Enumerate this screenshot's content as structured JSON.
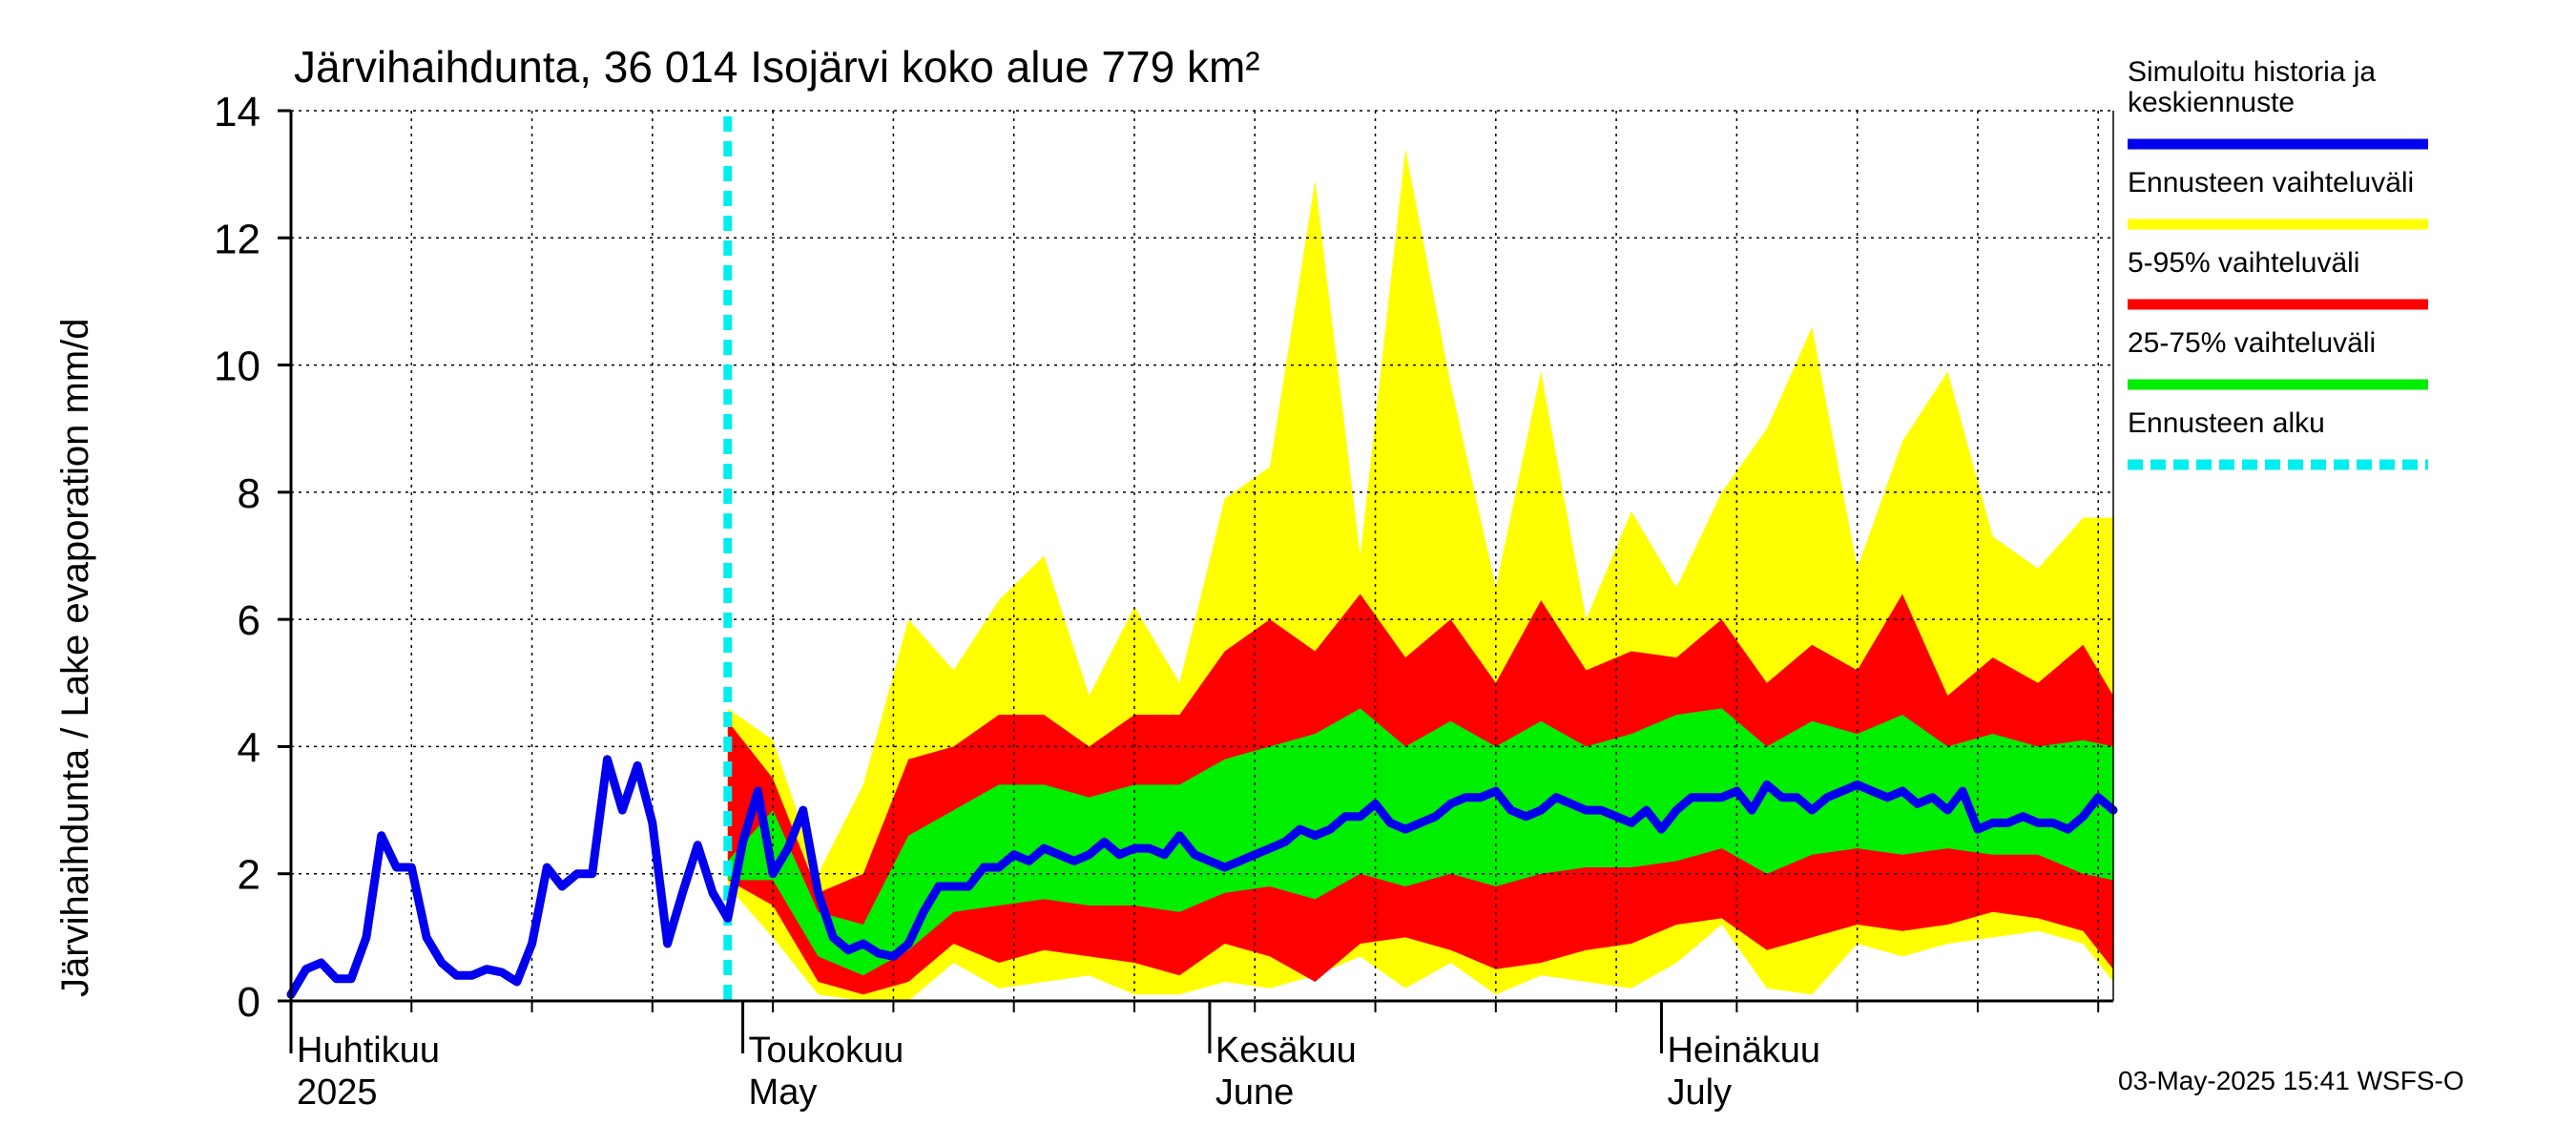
{
  "chart_data": {
    "type": "area",
    "title": "Järvihaihdunta, 36 014 Isojärvi koko alue 779 km²",
    "ylabel": "Järvihaihdunta / Lake evaporation   mm/d",
    "ylim": [
      0,
      14
    ],
    "yticks": [
      0,
      2,
      4,
      6,
      8,
      10,
      12,
      14
    ],
    "x_start": "2025-04-01",
    "x_end": "2025-07-31",
    "grid": true,
    "legend_position": "right",
    "month_labels": [
      {
        "date": "2025-04-01",
        "fi": "Huhtikuu",
        "en": "2025"
      },
      {
        "date": "2025-05-01",
        "fi": "Toukokuu",
        "en": "May"
      },
      {
        "date": "2025-06-01",
        "fi": "Kesäkuu",
        "en": "June"
      },
      {
        "date": "2025-07-01",
        "fi": "Heinäkuu",
        "en": "July"
      }
    ],
    "forecast_start": "2025-04-30",
    "forecast_dates": [
      "2025-04-30",
      "2025-05-03",
      "2025-05-06",
      "2025-05-09",
      "2025-05-12",
      "2025-05-15",
      "2025-05-18",
      "2025-05-21",
      "2025-05-24",
      "2025-05-27",
      "2025-05-30",
      "2025-06-02",
      "2025-06-05",
      "2025-06-08",
      "2025-06-11",
      "2025-06-14",
      "2025-06-17",
      "2025-06-20",
      "2025-06-23",
      "2025-06-26",
      "2025-06-29",
      "2025-07-02",
      "2025-07-05",
      "2025-07-08",
      "2025-07-11",
      "2025-07-14",
      "2025-07-17",
      "2025-07-20",
      "2025-07-23",
      "2025-07-26",
      "2025-07-29",
      "2025-07-31"
    ],
    "band_full": {
      "upper": [
        4.6,
        4.1,
        2.0,
        3.4,
        6.0,
        5.2,
        6.3,
        7.0,
        4.8,
        6.2,
        5.0,
        7.9,
        8.4,
        12.9,
        7.0,
        13.4,
        9.7,
        6.5,
        9.9,
        6.0,
        7.7,
        6.5,
        8.0,
        9.0,
        10.6,
        6.8,
        8.8,
        9.9,
        7.3,
        6.8,
        7.6,
        7.6
      ],
      "lower": [
        1.8,
        1.0,
        0.1,
        0.0,
        0.0,
        0.6,
        0.2,
        0.3,
        0.4,
        0.1,
        0.1,
        0.3,
        0.2,
        0.4,
        0.7,
        0.2,
        0.6,
        0.1,
        0.4,
        0.3,
        0.2,
        0.6,
        1.2,
        0.2,
        0.1,
        0.9,
        0.7,
        0.9,
        1.0,
        1.1,
        0.9,
        0.3
      ]
    },
    "band_5_95": {
      "upper": [
        4.4,
        3.5,
        1.7,
        2.0,
        3.8,
        4.0,
        4.5,
        4.5,
        4.0,
        4.5,
        4.5,
        5.5,
        6.0,
        5.5,
        6.4,
        5.4,
        6.0,
        5.0,
        6.3,
        5.2,
        5.5,
        5.4,
        6.0,
        5.0,
        5.6,
        5.2,
        6.4,
        4.8,
        5.4,
        5.0,
        5.6,
        4.8
      ],
      "lower": [
        1.9,
        1.5,
        0.3,
        0.1,
        0.3,
        0.9,
        0.6,
        0.8,
        0.7,
        0.6,
        0.4,
        0.9,
        0.7,
        0.3,
        0.9,
        1.0,
        0.8,
        0.5,
        0.6,
        0.8,
        0.9,
        1.2,
        1.3,
        0.8,
        1.0,
        1.2,
        1.1,
        1.2,
        1.4,
        1.3,
        1.1,
        0.5
      ]
    },
    "band_25_75": {
      "upper": [
        2.2,
        3.0,
        1.4,
        1.2,
        2.6,
        3.0,
        3.4,
        3.4,
        3.2,
        3.4,
        3.4,
        3.8,
        4.0,
        4.2,
        4.6,
        4.0,
        4.4,
        4.0,
        4.4,
        4.0,
        4.2,
        4.5,
        4.6,
        4.0,
        4.4,
        4.2,
        4.5,
        4.0,
        4.2,
        4.0,
        4.1,
        4.0
      ],
      "lower": [
        1.9,
        1.9,
        0.7,
        0.4,
        0.8,
        1.4,
        1.5,
        1.6,
        1.5,
        1.5,
        1.4,
        1.7,
        1.8,
        1.6,
        2.0,
        1.8,
        2.0,
        1.8,
        2.0,
        2.1,
        2.1,
        2.2,
        2.4,
        2.0,
        2.3,
        2.4,
        2.3,
        2.4,
        2.3,
        2.3,
        2.0,
        1.9
      ]
    },
    "simulated_dates": [
      "2025-04-01",
      "2025-04-02",
      "2025-04-03",
      "2025-04-04",
      "2025-04-05",
      "2025-04-06",
      "2025-04-07",
      "2025-04-08",
      "2025-04-09",
      "2025-04-10",
      "2025-04-11",
      "2025-04-12",
      "2025-04-13",
      "2025-04-14",
      "2025-04-15",
      "2025-04-16",
      "2025-04-17",
      "2025-04-18",
      "2025-04-19",
      "2025-04-20",
      "2025-04-21",
      "2025-04-22",
      "2025-04-23",
      "2025-04-24",
      "2025-04-25",
      "2025-04-26",
      "2025-04-27",
      "2025-04-28",
      "2025-04-29",
      "2025-04-30",
      "2025-05-01",
      "2025-05-02",
      "2025-05-03",
      "2025-05-04",
      "2025-05-05",
      "2025-05-06",
      "2025-05-07",
      "2025-05-08",
      "2025-05-09",
      "2025-05-10",
      "2025-05-11",
      "2025-05-12",
      "2025-05-13",
      "2025-05-14",
      "2025-05-15",
      "2025-05-16",
      "2025-05-17",
      "2025-05-18",
      "2025-05-19",
      "2025-05-20",
      "2025-05-21",
      "2025-05-22",
      "2025-05-23",
      "2025-05-24",
      "2025-05-25",
      "2025-05-26",
      "2025-05-27",
      "2025-05-28",
      "2025-05-29",
      "2025-05-30",
      "2025-05-31",
      "2025-06-01",
      "2025-06-02",
      "2025-06-03",
      "2025-06-04",
      "2025-06-05",
      "2025-06-06",
      "2025-06-07",
      "2025-06-08",
      "2025-06-09",
      "2025-06-10",
      "2025-06-11",
      "2025-06-12",
      "2025-06-13",
      "2025-06-14",
      "2025-06-15",
      "2025-06-16",
      "2025-06-17",
      "2025-06-18",
      "2025-06-19",
      "2025-06-20",
      "2025-06-21",
      "2025-06-22",
      "2025-06-23",
      "2025-06-24",
      "2025-06-25",
      "2025-06-26",
      "2025-06-27",
      "2025-06-28",
      "2025-06-29",
      "2025-06-30",
      "2025-07-01",
      "2025-07-02",
      "2025-07-03",
      "2025-07-04",
      "2025-07-05",
      "2025-07-06",
      "2025-07-07",
      "2025-07-08",
      "2025-07-09",
      "2025-07-10",
      "2025-07-11",
      "2025-07-12",
      "2025-07-13",
      "2025-07-14",
      "2025-07-15",
      "2025-07-16",
      "2025-07-17",
      "2025-07-18",
      "2025-07-19",
      "2025-07-20",
      "2025-07-21",
      "2025-07-22",
      "2025-07-23",
      "2025-07-24",
      "2025-07-25",
      "2025-07-26",
      "2025-07-27",
      "2025-07-28",
      "2025-07-29",
      "2025-07-30",
      "2025-07-31"
    ],
    "simulated_values": [
      0.1,
      0.5,
      0.6,
      0.35,
      0.35,
      1.0,
      2.6,
      2.1,
      2.1,
      1.0,
      0.6,
      0.4,
      0.4,
      0.5,
      0.45,
      0.3,
      0.9,
      2.1,
      1.8,
      2.0,
      2.0,
      3.8,
      3.0,
      3.7,
      2.8,
      0.9,
      1.7,
      2.45,
      1.7,
      1.3,
      2.5,
      3.3,
      2.0,
      2.4,
      3.0,
      1.7,
      1.0,
      0.8,
      0.9,
      0.75,
      0.7,
      0.9,
      1.4,
      1.8,
      1.8,
      1.8,
      2.1,
      2.1,
      2.3,
      2.2,
      2.4,
      2.3,
      2.2,
      2.3,
      2.5,
      2.3,
      2.4,
      2.4,
      2.3,
      2.6,
      2.3,
      2.2,
      2.1,
      2.2,
      2.3,
      2.4,
      2.5,
      2.7,
      2.6,
      2.7,
      2.9,
      2.9,
      3.1,
      2.8,
      2.7,
      2.8,
      2.9,
      3.1,
      3.2,
      3.2,
      3.3,
      3.0,
      2.9,
      3.0,
      3.2,
      3.1,
      3.0,
      3.0,
      2.9,
      2.8,
      3.0,
      2.7,
      3.0,
      3.2,
      3.2,
      3.2,
      3.3,
      3.0,
      3.4,
      3.2,
      3.2,
      3.0,
      3.2,
      3.3,
      3.4,
      3.3,
      3.2,
      3.3,
      3.1,
      3.2,
      3.0,
      3.3,
      2.7,
      2.8,
      2.8,
      2.9,
      2.8,
      2.8,
      2.7,
      2.9,
      3.2,
      3.0
    ],
    "legend": [
      {
        "lines": [
          "Simuloitu historia ja",
          "keskiennuste"
        ],
        "color": "#0000ee",
        "style": "solid"
      },
      {
        "lines": [
          "Ennusteen vaihteluväli"
        ],
        "color": "#ffff00",
        "style": "solid"
      },
      {
        "lines": [
          "5-95% vaihteluväli"
        ],
        "color": "#ff0000",
        "style": "solid"
      },
      {
        "lines": [
          "25-75% vaihteluväli"
        ],
        "color": "#00ee00",
        "style": "solid"
      },
      {
        "lines": [
          "Ennusteen alku"
        ],
        "color": "#00eeee",
        "style": "dashed"
      }
    ],
    "timestamp": "03-May-2025 15:41 WSFS-O"
  }
}
